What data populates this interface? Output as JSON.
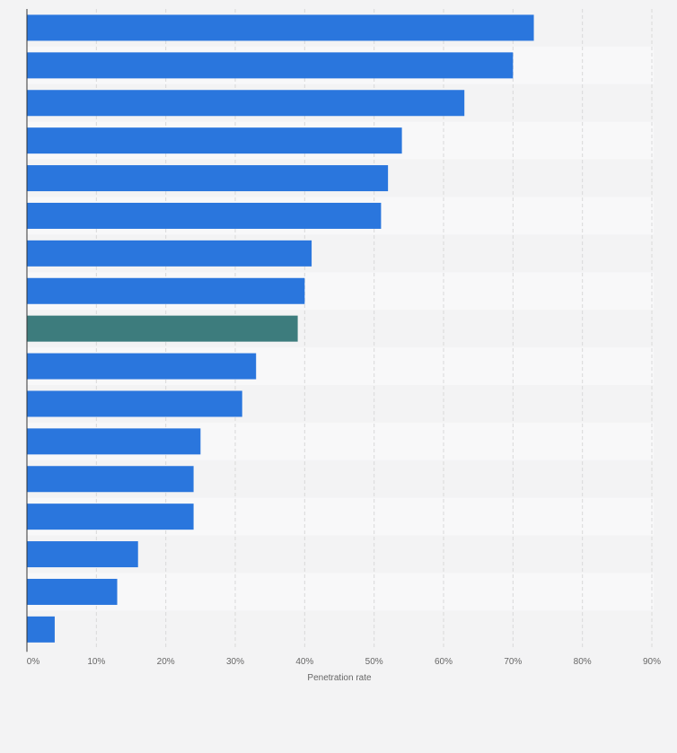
{
  "chart_data": {
    "type": "bar",
    "orientation": "horizontal",
    "xlabel": "Penetration rate",
    "xlim": [
      0,
      90
    ],
    "xticks": [
      "0%",
      "10%",
      "20%",
      "30%",
      "40%",
      "50%",
      "60%",
      "70%",
      "80%",
      "90%"
    ],
    "values": [
      73,
      70,
      63,
      54,
      52,
      51,
      41,
      40,
      39,
      33,
      31,
      25,
      24,
      24,
      16,
      13,
      4
    ],
    "highlight_index": 8,
    "grid": true,
    "colors": {
      "bar": "#2a76dd",
      "highlight": "#3d7c7d",
      "band_light": "#f8f8f9",
      "band_dark": "#f3f3f4",
      "gridline": "#d9d9d9",
      "axis": "#333333"
    }
  }
}
